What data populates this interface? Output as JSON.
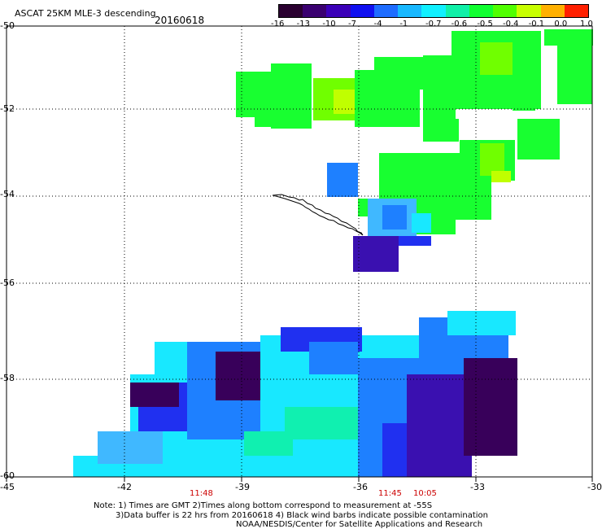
{
  "header": {
    "title": "ASCAT 25KM MLE-3 descending",
    "date": "20160618"
  },
  "colorbar": {
    "labels": [
      "-16",
      "-13",
      "-10",
      "-7",
      "-4",
      "-1",
      "-0.7",
      "-0.6",
      "-0.5",
      "-0.4",
      "-0.1",
      "0.0",
      "1.0"
    ],
    "colors": [
      "#2a0030",
      "#3a0070",
      "#3b00b8",
      "#1010f0",
      "#1e6cff",
      "#18b8ff",
      "#10f0ff",
      "#10f0a8",
      "#10ff30",
      "#50ff00",
      "#c8ff00",
      "#ffb000",
      "#ff2000"
    ]
  },
  "map": {
    "lat_labels": [
      "-50",
      "-52",
      "-54",
      "-56",
      "-58",
      "-60"
    ],
    "lon_labels": [
      "-45",
      "-42",
      "-39",
      "-36",
      "-33",
      "-30"
    ],
    "time_labels": [
      "11:48",
      "11:45",
      "10:05"
    ],
    "background": "#ffffff",
    "gridline_color": "#000000",
    "coastline_color": "#000000"
  },
  "footer": {
    "line1": "Note: 1) Times are GMT 2)Times along bottom correspond to measurement at -55S",
    "line2": "3)Data buffer is 22 hrs from 20160618 4) Black wind barbs indicate possible contamination",
    "line3": "NOAA/NESDIS/Center for Satellite Applications and Research"
  }
}
